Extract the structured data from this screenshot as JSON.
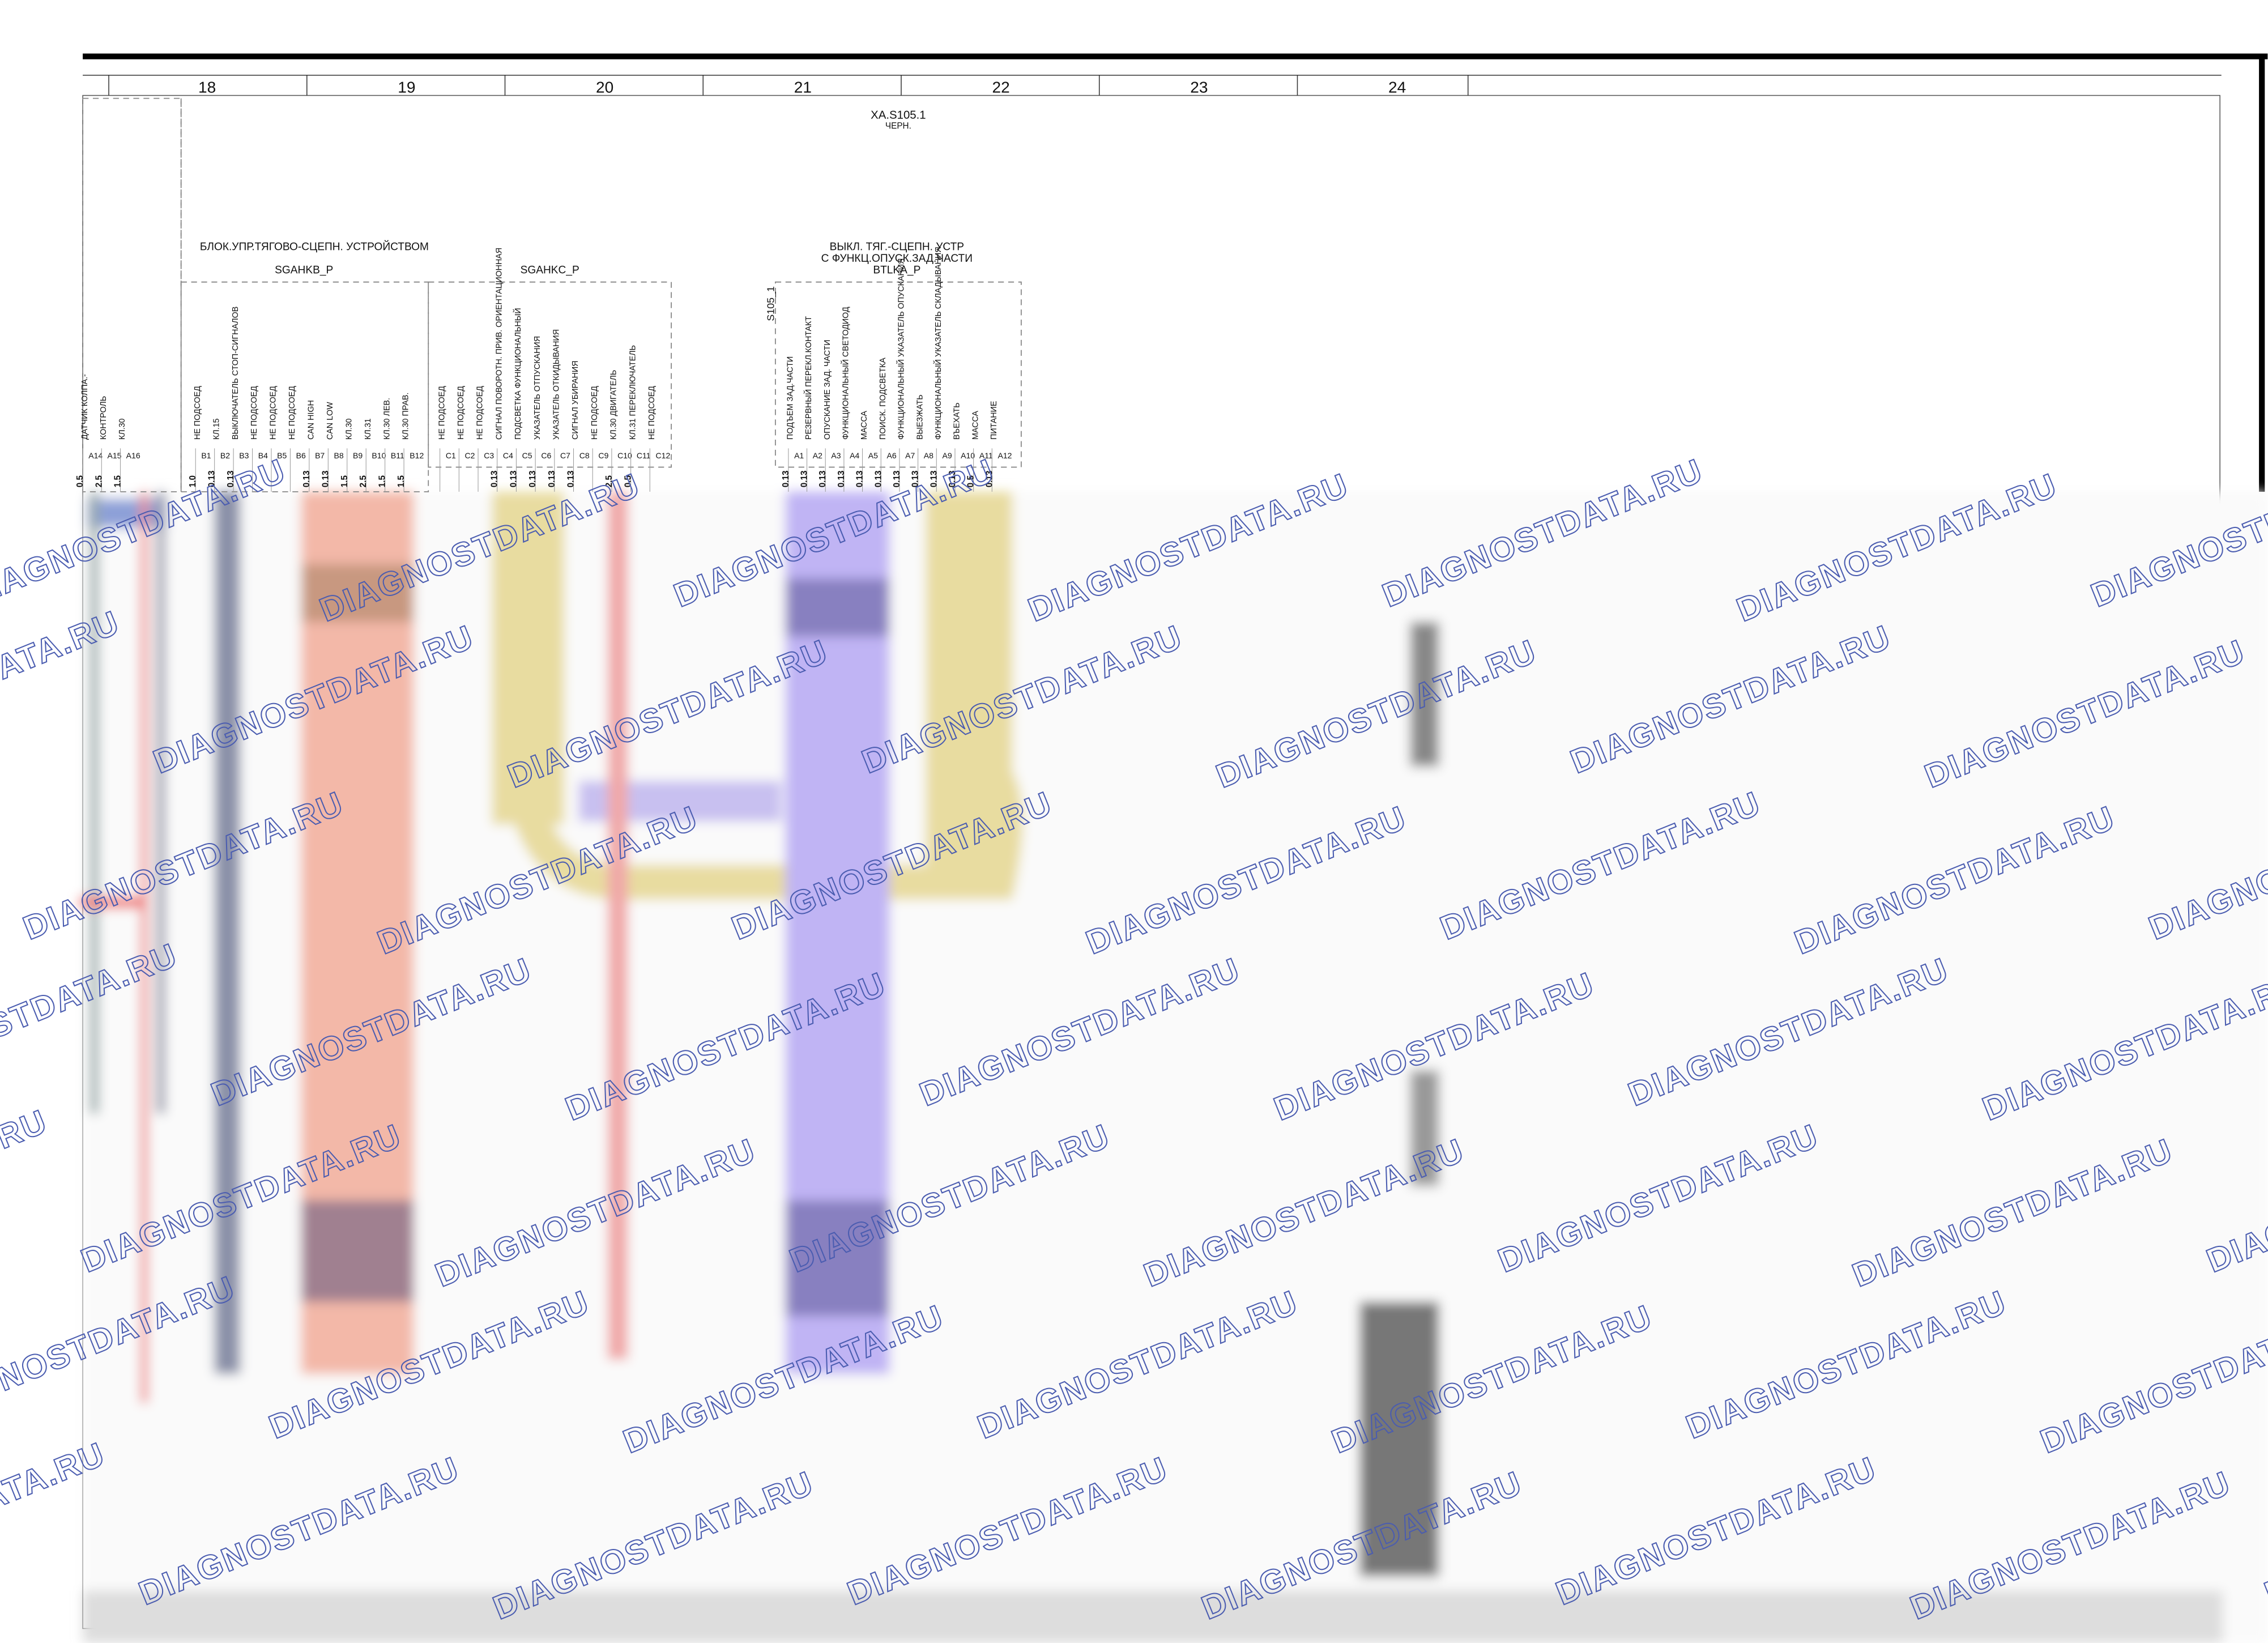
{
  "columns": [
    "18",
    "19",
    "20",
    "21",
    "22",
    "23",
    "24"
  ],
  "connector_header": {
    "name": "XA.S105.1",
    "color": "ЧЕРН."
  },
  "left_block": {
    "pins": [
      {
        "id": "A14",
        "label": "ДАТЧИК КОЛПА.-",
        "gauge": "0.5"
      },
      {
        "id": "A15",
        "label": "КОНТРОЛЬ",
        "gauge": "2.5"
      },
      {
        "id": "A16",
        "label": "КЛ.30",
        "gauge": "1.5"
      }
    ]
  },
  "control_unit": {
    "title": "БЛОК.УПР.ТЯГОВО-СЦЕПН. УСТРОЙСТВОМ",
    "connectors": [
      {
        "name": "SGAHKB_P",
        "pins": [
          {
            "id": "B1",
            "label": "НЕ ПОДСОЕД",
            "gauge": "1.0"
          },
          {
            "id": "B2",
            "label": "КЛ.15",
            "gauge": "0.13"
          },
          {
            "id": "B3",
            "label": "ВЫКЛЮЧАТЕЛЬ СТОП-СИГНАЛОВ",
            "gauge": "0.13"
          },
          {
            "id": "B4",
            "label": "НЕ ПОДСОЕД",
            "gauge": ""
          },
          {
            "id": "B5",
            "label": "НЕ ПОДСОЕД",
            "gauge": ""
          },
          {
            "id": "B6",
            "label": "НЕ ПОДСОЕД",
            "gauge": ""
          },
          {
            "id": "B7",
            "label": "CAN HIGH",
            "gauge": "0.13"
          },
          {
            "id": "B8",
            "label": "CAN LOW",
            "gauge": "0.13"
          },
          {
            "id": "B9",
            "label": "КЛ.30",
            "gauge": "1.5"
          },
          {
            "id": "B10",
            "label": "КЛ.31",
            "gauge": "2.5"
          },
          {
            "id": "B11",
            "label": "КЛ.30 ЛЕВ.",
            "gauge": "1.5"
          },
          {
            "id": "B12",
            "label": "КЛ.30 ПРАВ.",
            "gauge": "1.5"
          }
        ]
      },
      {
        "name": "SGAHKC_P",
        "pins": [
          {
            "id": "C1",
            "label": "НЕ ПОДСОЕД",
            "gauge": ""
          },
          {
            "id": "C2",
            "label": "НЕ ПОДСОЕД",
            "gauge": ""
          },
          {
            "id": "C3",
            "label": "НЕ ПОДСОЕД",
            "gauge": ""
          },
          {
            "id": "C4",
            "label": "СИГНАЛ ПОВОРОТН. ПРИВ. ОРИЕНТАЦИОННАЯ",
            "gauge": "0.13"
          },
          {
            "id": "C5",
            "label": "ПОДСВЕТКА ФУНКЦИОНАЛЬНЫЙ",
            "gauge": "0.13"
          },
          {
            "id": "C6",
            "label": "УКАЗАТЕЛЬ ОТПУСКАНИЯ",
            "gauge": "0.13"
          },
          {
            "id": "C7",
            "label": "УКАЗАТЕЛЬ ОТКИДЫВАНИЯ",
            "gauge": "0.13"
          },
          {
            "id": "C8",
            "label": "СИГНАЛ УБИРАНИЯ",
            "gauge": "0.13"
          },
          {
            "id": "C9",
            "label": "НЕ ПОДСОЕД",
            "gauge": ""
          },
          {
            "id": "C10",
            "label": "КЛ.30 ДВИГАТЕЛЬ",
            "gauge": "2.5"
          },
          {
            "id": "C11",
            "label": "КЛ.31 ПЕРЕКЛЮЧАТЕЛЬ",
            "gauge": "0.5"
          },
          {
            "id": "C12",
            "label": "НЕ ПОДСОЕД",
            "gauge": ""
          }
        ]
      }
    ]
  },
  "switch": {
    "title_lines": [
      "ВЫКЛ. ТЯГ.-СЦЕПН. УСТР",
      "С ФУНКЦ.ОПУСК.ЗАД.ЧАСТИ"
    ],
    "connector": "BTLKA_P",
    "ref": "S105_1",
    "pins": [
      {
        "id": "A1",
        "label": "ПОДЪЕМ ЗАД.ЧАСТИ",
        "gauge": "0.13"
      },
      {
        "id": "A2",
        "label": "РЕЗЕРВНЫЙ ПЕРЕКЛ.КОНТАКТ",
        "gauge": "0.13"
      },
      {
        "id": "A3",
        "label": "ОПУСКАНИЕ ЗАД. ЧАСТИ",
        "gauge": "0.13"
      },
      {
        "id": "A4",
        "label": "ФУНКЦИОНАЛЬНЫЙ СВЕТОДИОД",
        "gauge": "0.13"
      },
      {
        "id": "A5",
        "label": "МАССА",
        "gauge": "0.13"
      },
      {
        "id": "A6",
        "label": "ПОИСК. ПОДСВЕТКА",
        "gauge": "0.13"
      },
      {
        "id": "A7",
        "label": "ФУНКЦИОНАЛЬНЫЙ УКАЗАТЕЛЬ ОПУСКАНИЯ",
        "gauge": "0.13"
      },
      {
        "id": "A8",
        "label": "ВЫЕЗЖАТЬ",
        "gauge": "0.13"
      },
      {
        "id": "A9",
        "label": "ФУНКЦИОНАЛЬНЫЙ УКАЗАТЕЛЬ СКЛАДЫВАНИЯ",
        "gauge": "0.13"
      },
      {
        "id": "A10",
        "label": "ВЪЕХАТЬ",
        "gauge": "0.13"
      },
      {
        "id": "A11",
        "label": "МАССА",
        "gauge": "0.5"
      },
      {
        "id": "A12",
        "label": "ПИТАНИЕ",
        "gauge": "0.13"
      }
    ]
  },
  "watermark": "DIAGNOSTDATA.RU"
}
